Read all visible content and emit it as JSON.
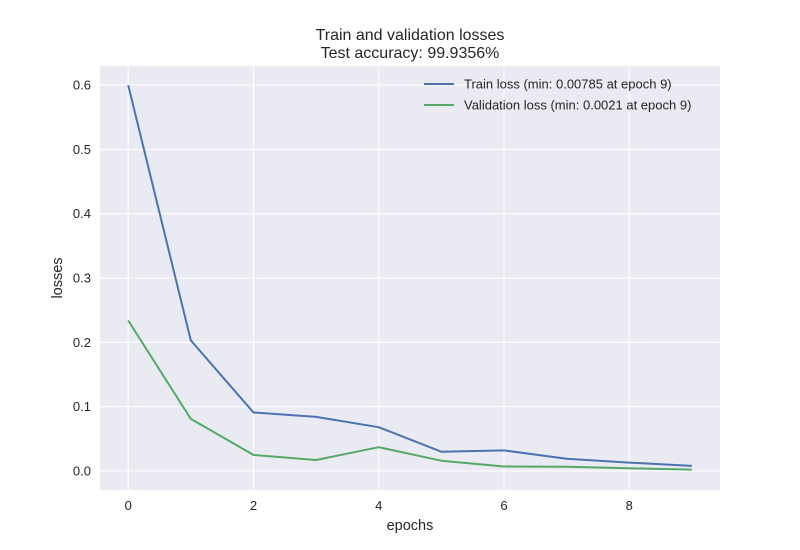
{
  "chart_data": {
    "type": "line",
    "title": "Train and validation losses",
    "subtitle": "Test accuracy: 99.9356%",
    "xlabel": "epochs",
    "ylabel": "losses",
    "x": [
      0,
      1,
      2,
      3,
      4,
      5,
      6,
      7,
      8,
      9
    ],
    "xlim": [
      -0.45,
      9.45
    ],
    "ylim": [
      -0.0296,
      0.6297
    ],
    "xticks": [
      0,
      2,
      4,
      6,
      8
    ],
    "yticks": [
      0.0,
      0.1,
      0.2,
      0.3,
      0.4,
      0.5,
      0.6
    ],
    "xtick_labels": [
      "0",
      "2",
      "4",
      "6",
      "8"
    ],
    "ytick_labels": [
      "0.0",
      "0.1",
      "0.2",
      "0.3",
      "0.4",
      "0.5",
      "0.6"
    ],
    "grid": true,
    "legend_position": "top-right",
    "series": [
      {
        "name": "Train loss (min: 0.00785 at epoch 9)",
        "color": "#4c72b0",
        "values": [
          0.6,
          0.203,
          0.091,
          0.084,
          0.068,
          0.03,
          0.032,
          0.019,
          0.013,
          0.00785
        ]
      },
      {
        "name": "Validation loss (min: 0.0021 at epoch 9)",
        "color": "#55a868",
        "values": [
          0.234,
          0.081,
          0.025,
          0.017,
          0.037,
          0.016,
          0.007,
          0.0065,
          0.0042,
          0.0021
        ]
      }
    ],
    "colors": {
      "plot_background": "#eaeaf2",
      "grid": "#ffffff"
    }
  }
}
